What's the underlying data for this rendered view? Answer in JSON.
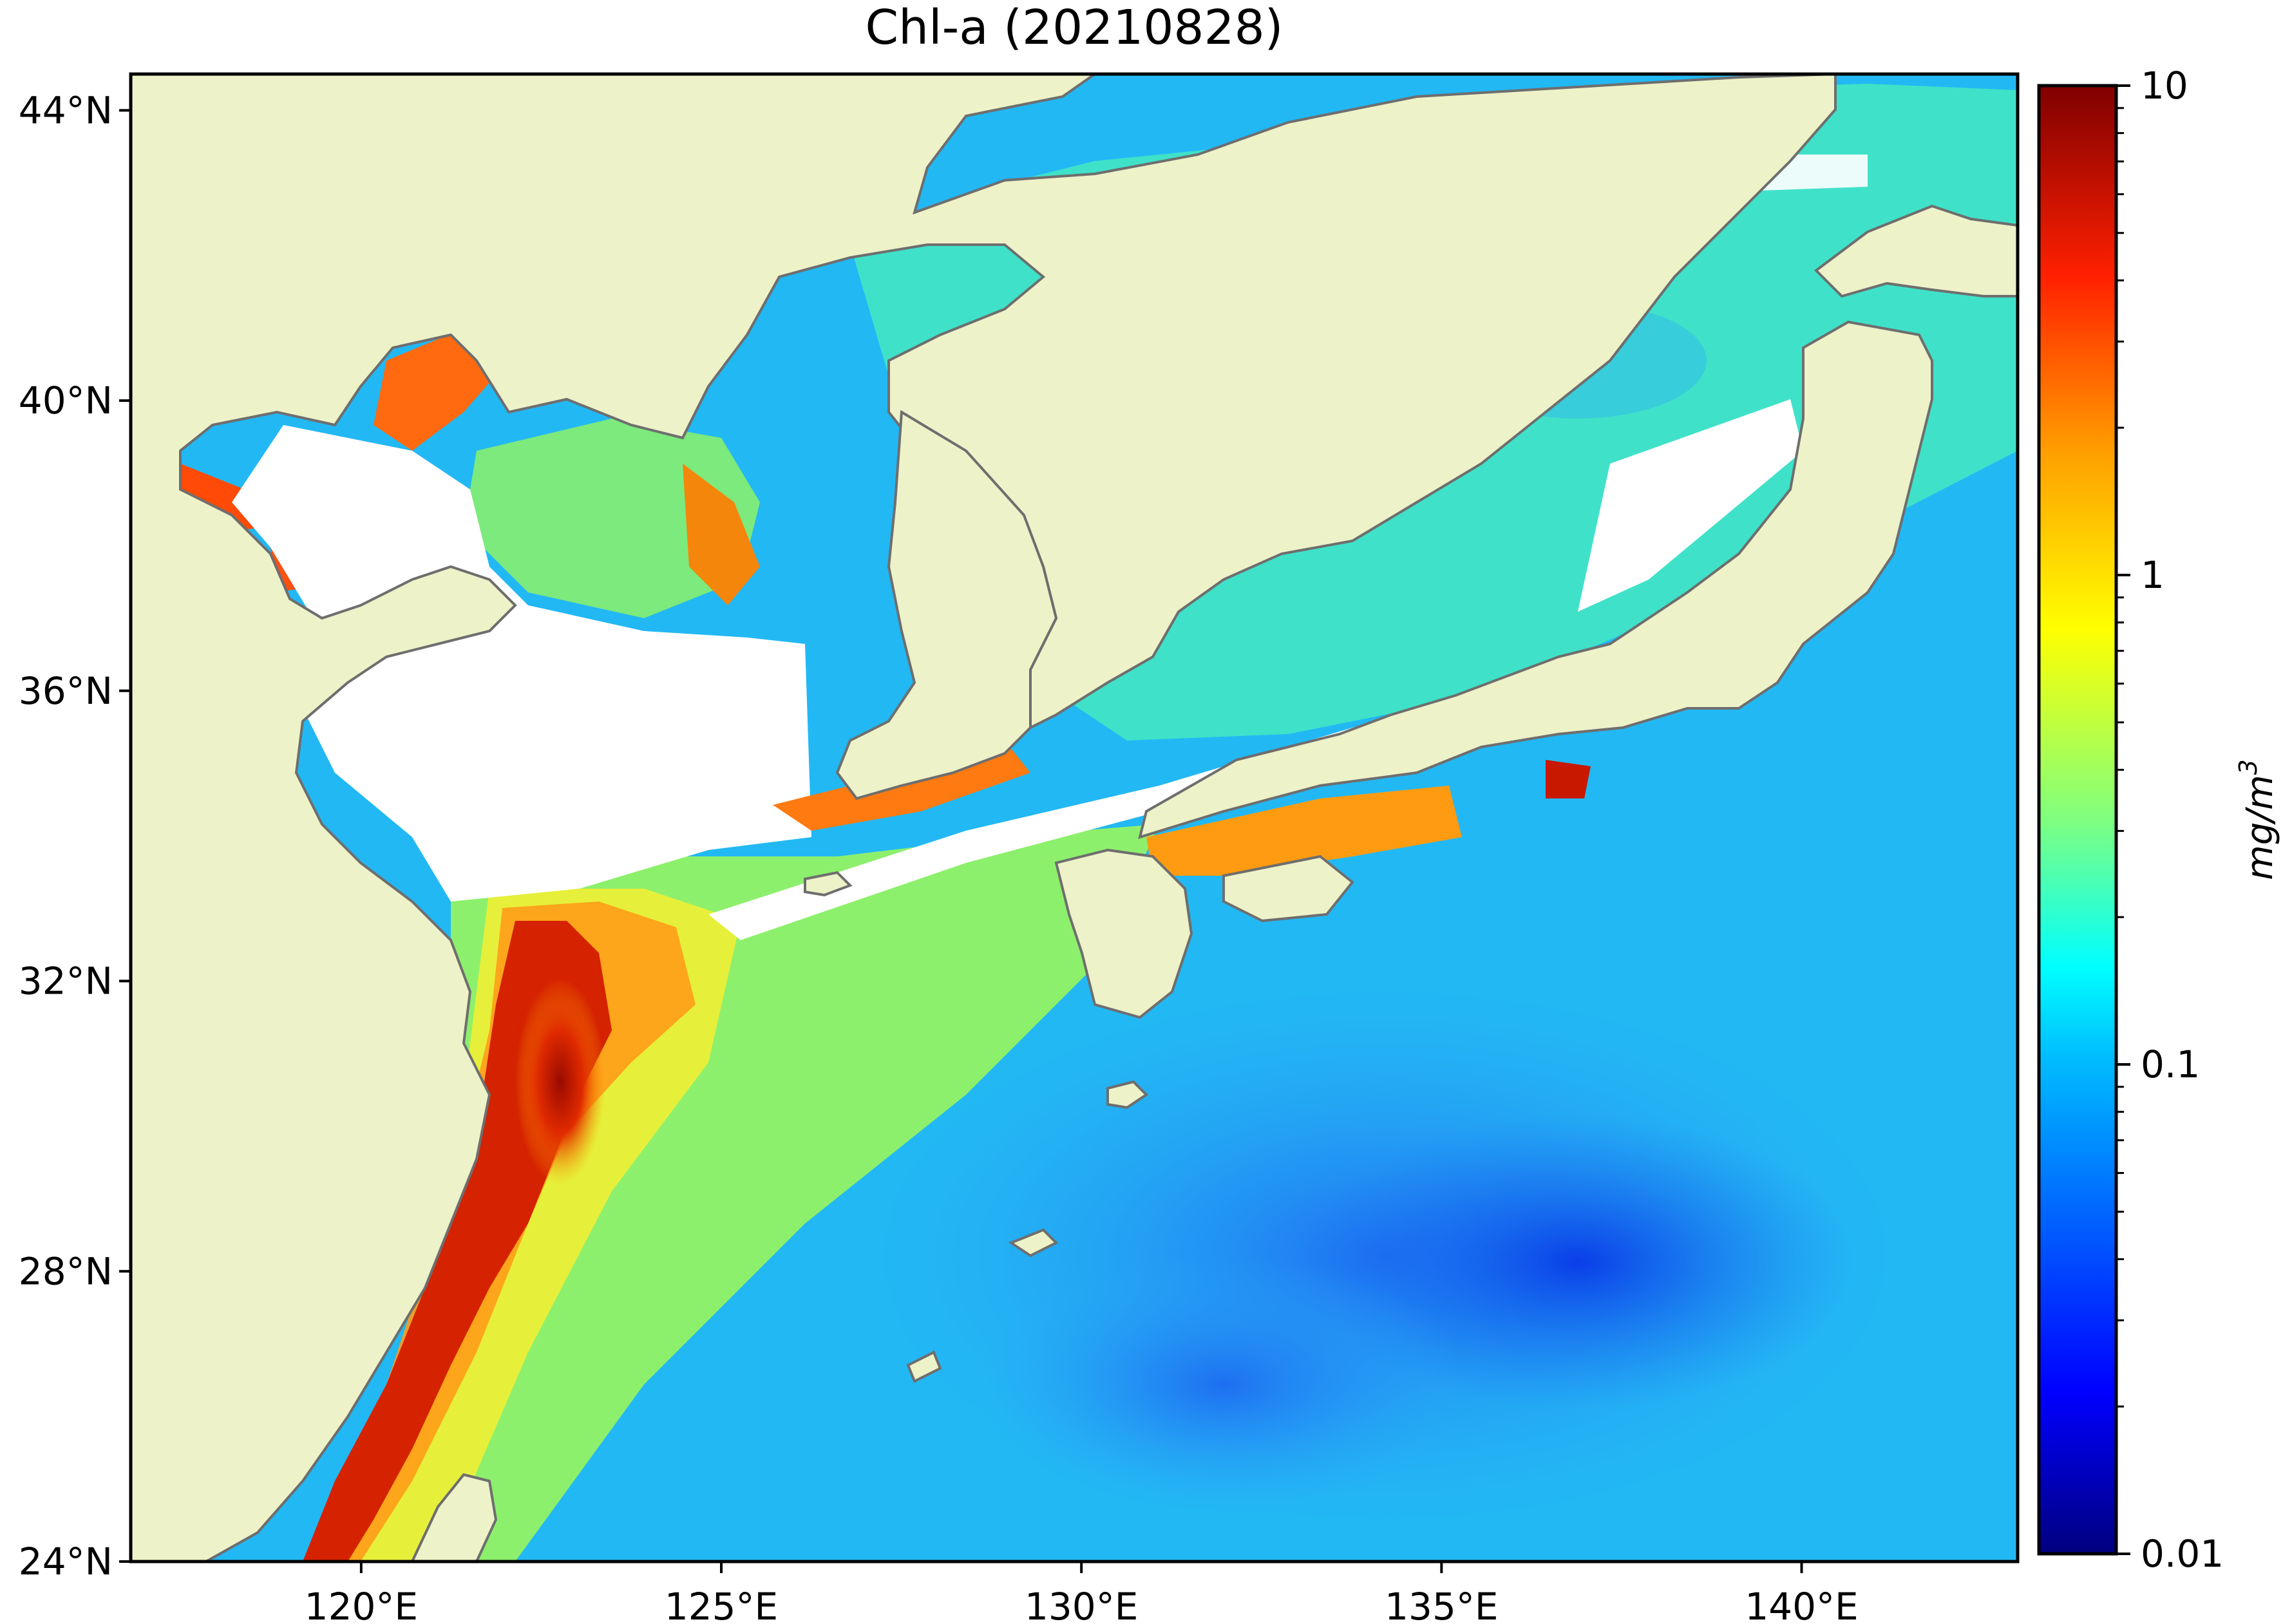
{
  "title": "Chl-a (20210828)",
  "map": {
    "lon_range": [
      116.8,
      143.0
    ],
    "lat_range": [
      24.0,
      44.5
    ],
    "land_color": "#eef2c8",
    "coast_color": "#6e6e6e",
    "no_data_color": "#ffffff"
  },
  "axes": {
    "x_ticks": [
      {
        "value": 120,
        "label": "120°E"
      },
      {
        "value": 125,
        "label": "125°E"
      },
      {
        "value": 130,
        "label": "130°E"
      },
      {
        "value": 135,
        "label": "135°E"
      },
      {
        "value": 140,
        "label": "140°E"
      }
    ],
    "y_ticks": [
      {
        "value": 24,
        "label": "24°N"
      },
      {
        "value": 28,
        "label": "28°N"
      },
      {
        "value": 32,
        "label": "32°N"
      },
      {
        "value": 36,
        "label": "36°N"
      },
      {
        "value": 40,
        "label": "40°N"
      },
      {
        "value": 44,
        "label": "44°N"
      }
    ]
  },
  "colorbar": {
    "scale": "log",
    "min": 0.01,
    "max": 10,
    "colormap": "jet",
    "unit_label": "mg/m",
    "unit_superscript": "3",
    "ticks": [
      {
        "value": 10,
        "label": "10"
      },
      {
        "value": 1,
        "label": "1"
      },
      {
        "value": 0.1,
        "label": "0.1"
      },
      {
        "value": 0.01,
        "label": "0.01"
      }
    ]
  },
  "colors": {
    "jet": [
      "#00007f",
      "#0000ff",
      "#007fff",
      "#00ffff",
      "#7fff7f",
      "#ffff00",
      "#ff7f00",
      "#ff0000",
      "#7f0000"
    ]
  }
}
